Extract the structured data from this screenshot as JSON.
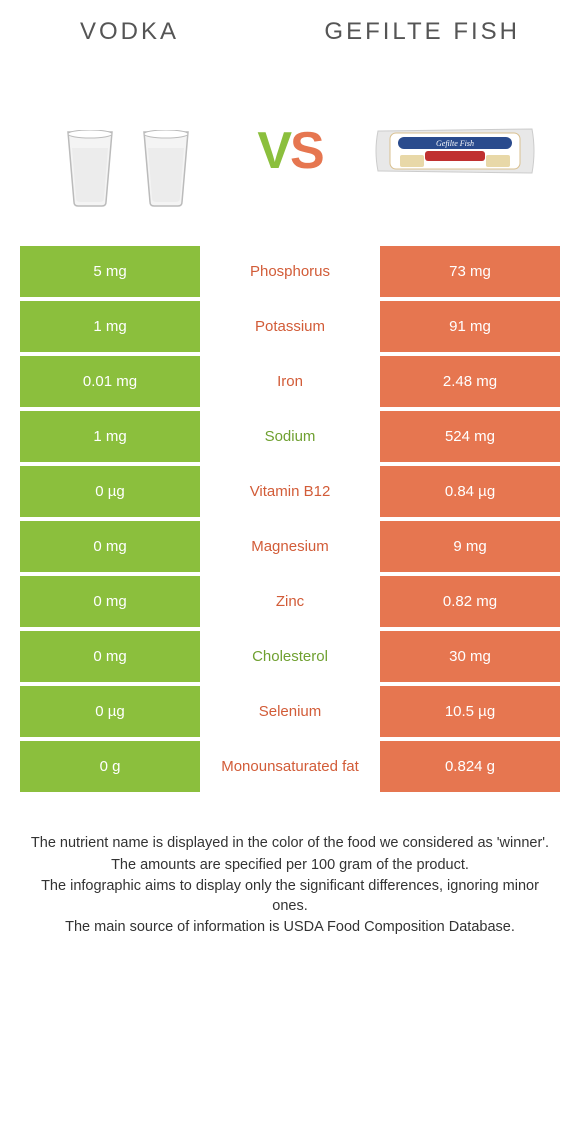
{
  "titles": {
    "left": "VODKA",
    "right": "GEFILTE FISH"
  },
  "vs": {
    "v": "V",
    "s": "S"
  },
  "colors": {
    "green": "#8bbf3d",
    "orange": "#e67650"
  },
  "rows": [
    {
      "left": "5 mg",
      "label": "Phosphorus",
      "right": "73 mg",
      "winner": "orange"
    },
    {
      "left": "1 mg",
      "label": "Potassium",
      "right": "91 mg",
      "winner": "orange"
    },
    {
      "left": "0.01 mg",
      "label": "Iron",
      "right": "2.48 mg",
      "winner": "orange"
    },
    {
      "left": "1 mg",
      "label": "Sodium",
      "right": "524 mg",
      "winner": "green"
    },
    {
      "left": "0 µg",
      "label": "Vitamin B12",
      "right": "0.84 µg",
      "winner": "orange"
    },
    {
      "left": "0 mg",
      "label": "Magnesium",
      "right": "9 mg",
      "winner": "orange"
    },
    {
      "left": "0 mg",
      "label": "Zinc",
      "right": "0.82 mg",
      "winner": "orange"
    },
    {
      "left": "0 mg",
      "label": "Cholesterol",
      "right": "30 mg",
      "winner": "green"
    },
    {
      "left": "0 µg",
      "label": "Selenium",
      "right": "10.5 µg",
      "winner": "orange"
    },
    {
      "left": "0 g",
      "label": "Monounsaturated fat",
      "right": "0.824 g",
      "winner": "orange"
    }
  ],
  "footer": [
    "The nutrient name is displayed in the color of the food we considered as 'winner'.",
    "The amounts are specified per 100 gram of the product.",
    "The infographic aims to display only the significant differences, ignoring minor ones.",
    "The main source of information is USDA Food Composition Database."
  ]
}
